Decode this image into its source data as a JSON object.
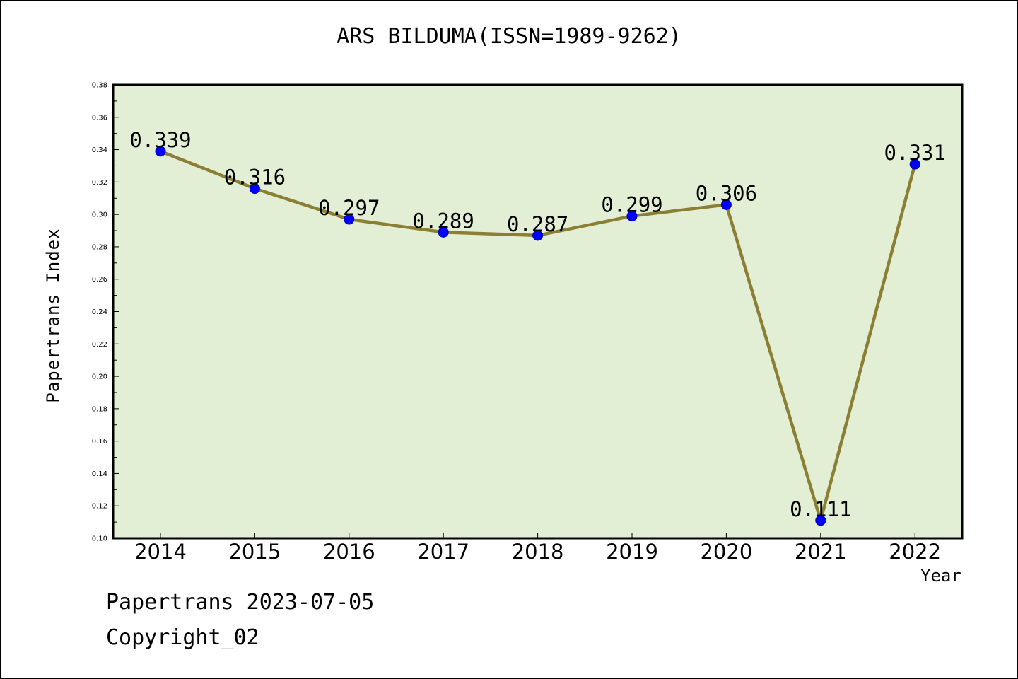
{
  "chart_data": {
    "type": "line",
    "title": "ARS BILDUMA(ISSN=1989-9262)",
    "xlabel": "Year",
    "ylabel": "Papertrans Index",
    "categories": [
      "2014",
      "2015",
      "2016",
      "2017",
      "2018",
      "2019",
      "2020",
      "2021",
      "2022"
    ],
    "series": [
      {
        "values": [
          0.339,
          0.316,
          0.297,
          0.289,
          0.287,
          0.299,
          0.306,
          0.111,
          0.331
        ],
        "labels": [
          "0.339",
          "0.316",
          "0.297",
          "0.289",
          "0.287",
          "0.299",
          "0.306",
          "0.111",
          "0.331"
        ]
      }
    ],
    "ylim": [
      0.1,
      0.38
    ],
    "yticks": [
      "0.10",
      "0.12",
      "0.14",
      "0.16",
      "0.18",
      "0.20",
      "0.22",
      "0.24",
      "0.26",
      "0.28",
      "0.30",
      "0.32",
      "0.34",
      "0.36",
      "0.38"
    ],
    "grid": false,
    "colors": {
      "plot_background": "#e2efd5",
      "line": "#8b7f35",
      "marker": "#0000ff"
    }
  },
  "footer": {
    "line1": "Papertrans 2023-07-05",
    "line2": "Copyright_02"
  }
}
